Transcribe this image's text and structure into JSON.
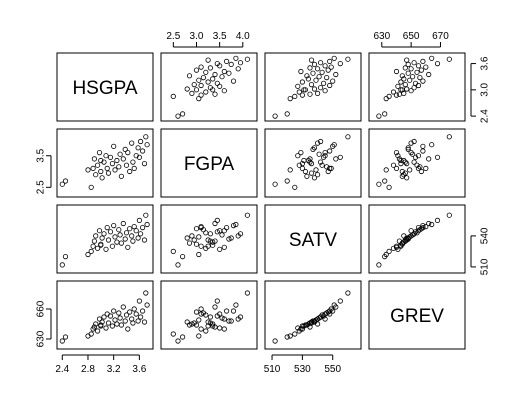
{
  "chart_data": {
    "type": "scatter",
    "variables": [
      {
        "name": "HSGPA",
        "ticks": [
          2.4,
          2.8,
          3.2,
          3.6
        ],
        "lim": [
          2.38,
          3.75
        ],
        "axis": "bottom",
        "tick_labels": [
          "2.4",
          "2.8",
          "3.2",
          "3.6"
        ]
      },
      {
        "name": "FGPA",
        "ticks": [
          2.5,
          3.0,
          3.5,
          4.0
        ],
        "lim": [
          2.32,
          4.22
        ],
        "axis": "top/left",
        "tick_labels": [
          "2.5",
          "3.0",
          "3.5",
          "4.0"
        ]
      },
      {
        "name": "SATV",
        "ticks": [
          510,
          530,
          550
        ],
        "lim": [
          508,
          566
        ],
        "axis": "bottom/right",
        "tick_labels": [
          "510",
          "530",
          "550"
        ]
      },
      {
        "name": "GREV",
        "ticks": [
          630,
          650,
          670
        ],
        "lim": [
          624,
          684
        ],
        "axis": "top/left",
        "tick_labels": [
          "630",
          "650",
          "670"
        ]
      }
    ],
    "right_axis_ticks": {
      "HSGPA": [
        "2.4",
        "3.0",
        "3.6"
      ],
      "SATV": [
        "510",
        "540"
      ]
    },
    "left_axis_ticks": {
      "FGPA": [
        "2.5",
        "3.5"
      ],
      "GREV": [
        "630",
        "660"
      ]
    },
    "points": {
      "HSGPA": [
        2.4,
        2.45,
        2.85,
        2.88,
        2.9,
        2.92,
        2.95,
        2.98,
        3.0,
        3.02,
        3.05,
        3.08,
        3.1,
        3.12,
        3.15,
        3.18,
        3.2,
        3.22,
        3.25,
        3.28,
        3.3,
        3.32,
        3.35,
        3.38,
        3.4,
        3.42,
        3.45,
        3.48,
        3.5,
        3.52,
        3.55,
        3.58,
        3.6,
        3.62,
        3.65,
        3.68,
        3.7,
        3.72,
        2.8,
        3.0
      ],
      "FGPA": [
        2.6,
        2.7,
        2.5,
        3.1,
        3.4,
        2.9,
        3.2,
        3.6,
        3.0,
        2.8,
        3.3,
        3.5,
        3.1,
        2.95,
        3.45,
        3.25,
        3.8,
        3.05,
        3.35,
        3.15,
        3.55,
        2.85,
        3.4,
        3.7,
        3.2,
        3.6,
        3.0,
        3.9,
        3.3,
        3.1,
        3.5,
        3.75,
        3.45,
        3.95,
        3.65,
        3.25,
        4.1,
        3.85,
        3.05,
        3.35
      ],
      "SATV": [
        512,
        520,
        525,
        530,
        535,
        540,
        528,
        545,
        532,
        538,
        542,
        527,
        548,
        536,
        544,
        530,
        550,
        539,
        534,
        546,
        541,
        533,
        552,
        537,
        543,
        529,
        547,
        540,
        535,
        549,
        545,
        538,
        555,
        542,
        548,
        536,
        560,
        551,
        522,
        531
      ],
      "GREV": [
        628,
        632,
        635,
        640,
        642,
        645,
        638,
        650,
        644,
        647,
        652,
        641,
        655,
        646,
        653,
        643,
        658,
        649,
        645,
        656,
        651,
        644,
        662,
        648,
        654,
        640,
        657,
        650,
        646,
        660,
        655,
        648,
        668,
        652,
        658,
        647,
        676,
        664,
        633,
        643
      ]
    }
  }
}
